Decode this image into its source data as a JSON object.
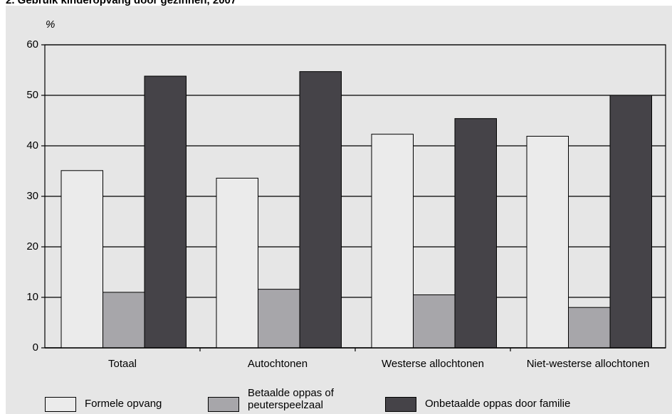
{
  "chart_data": {
    "type": "bar",
    "title": "2. Gebruik kinderopvang door gezinnen, 2007",
    "y_label": "%",
    "categories": [
      "Totaal",
      "Autochtonen",
      "Westerse allochtonen",
      "Niet-westerse allochtonen"
    ],
    "series": [
      {
        "name": "Formele opvang",
        "color": "#ebebeb",
        "values": [
          35.1,
          33.6,
          42.3,
          41.9
        ]
      },
      {
        "name": "Betaalde oppas of peuterspeelzaal",
        "color": "#a7a6aa",
        "values": [
          11.0,
          11.6,
          10.5,
          8.0
        ]
      },
      {
        "name": "Onbetaalde oppas door familie",
        "color": "#454348",
        "values": [
          53.8,
          54.7,
          45.4,
          50.0
        ]
      }
    ],
    "ylim": [
      0,
      60
    ],
    "yticks": [
      0,
      10,
      20,
      30,
      40,
      50,
      60
    ],
    "grid": true
  }
}
